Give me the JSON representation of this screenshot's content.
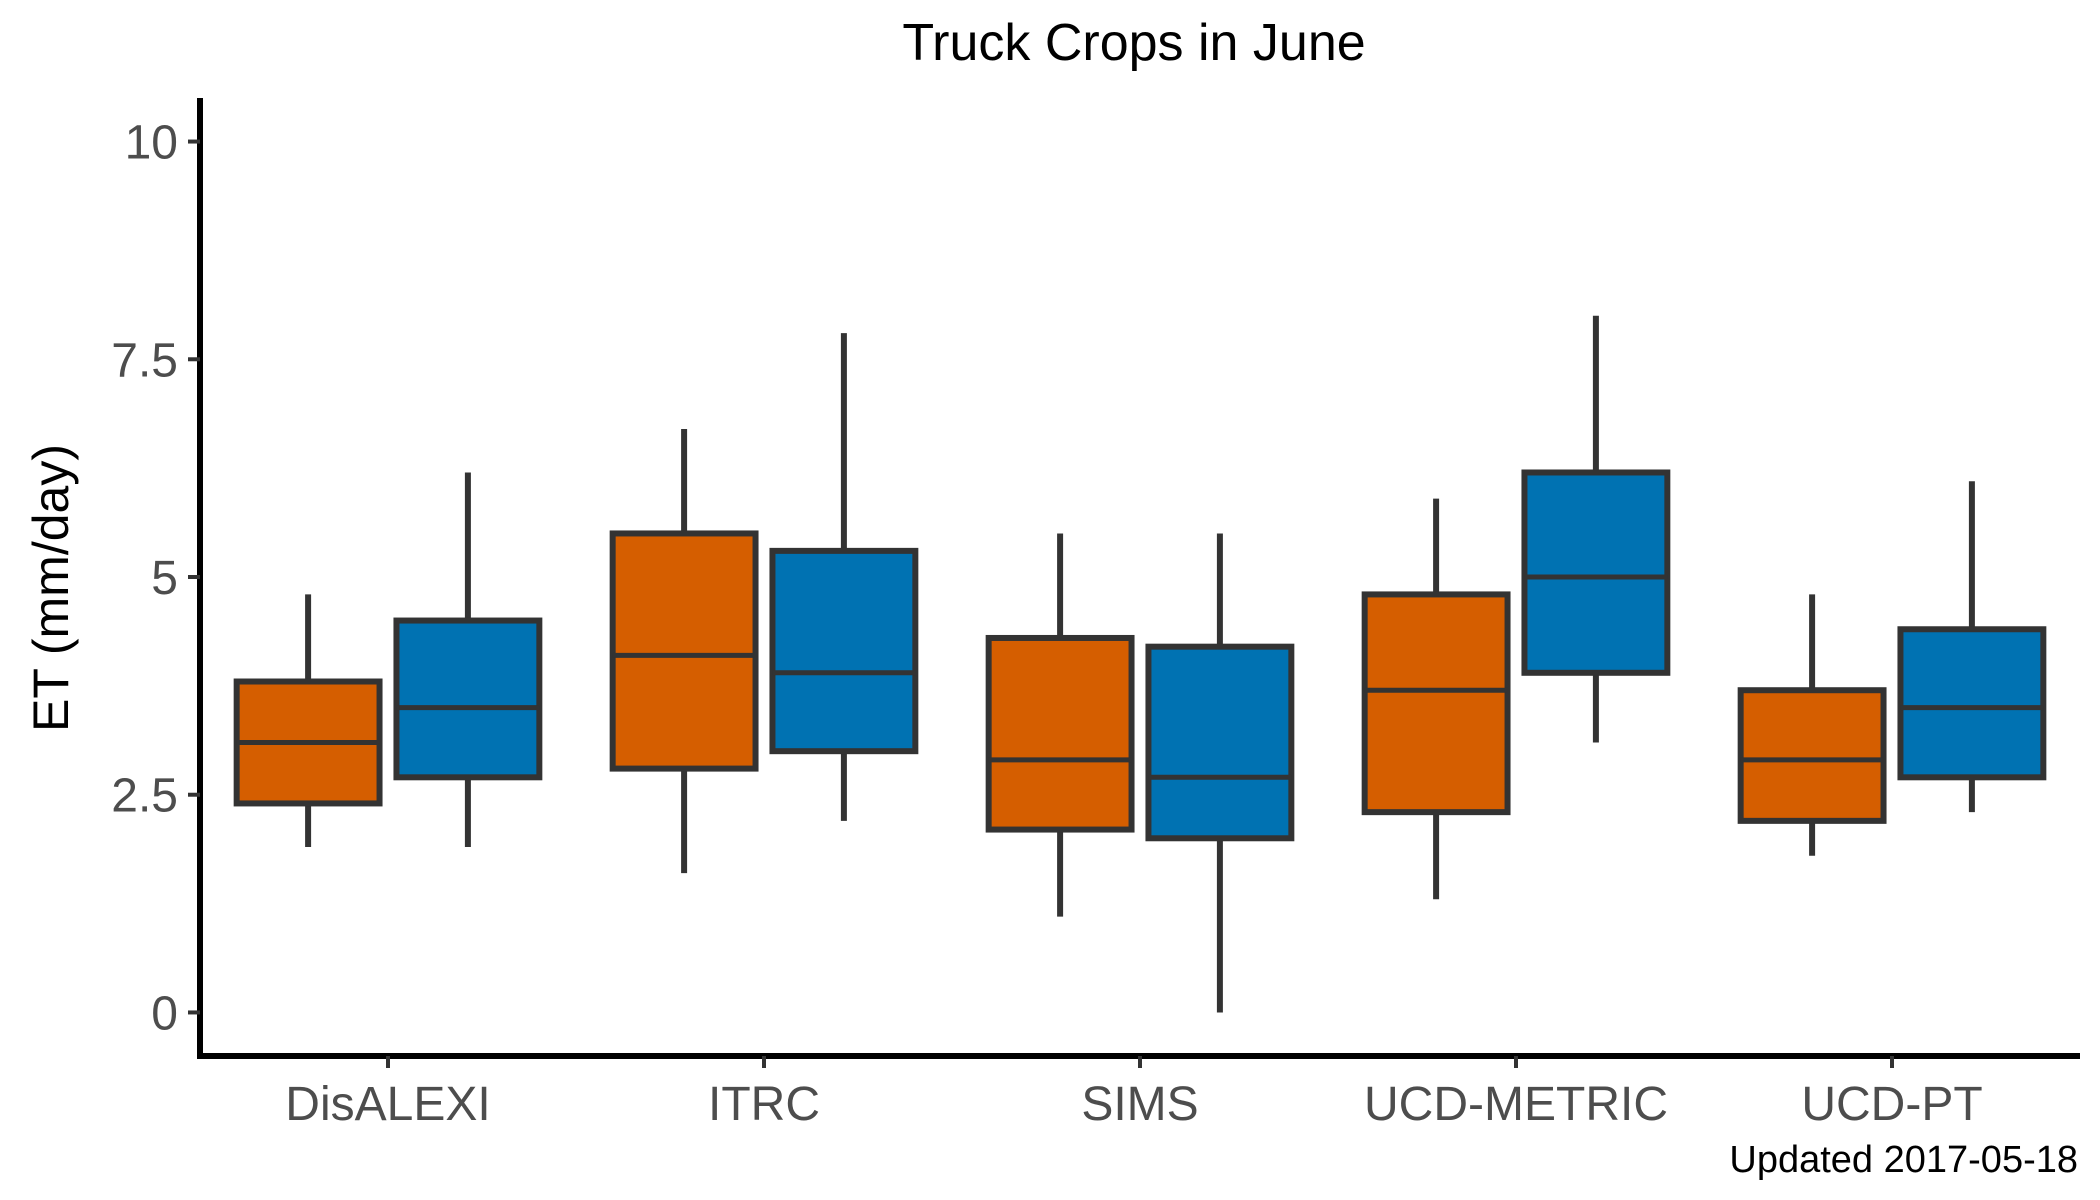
{
  "chart_data": {
    "type": "boxplot",
    "title": "Truck Crops in June",
    "ylabel": "ET (mm/day)",
    "xlabel": "",
    "ylim": [
      -0.5,
      10.5
    ],
    "yticks": [
      0,
      2.5,
      5,
      7.5,
      10
    ],
    "ytick_labels": [
      "0",
      "2.5",
      "5",
      "7.5",
      "10"
    ],
    "grid": false,
    "legend": "none",
    "categories": [
      "DisALEXI",
      "ITRC",
      "SIMS",
      "UCD-METRIC",
      "UCD-PT"
    ],
    "series": [
      {
        "color": "#d55e00",
        "boxes": [
          {
            "min": 1.9,
            "q1": 2.4,
            "median": 3.1,
            "q3": 3.8,
            "max": 4.8
          },
          {
            "min": 1.6,
            "q1": 2.8,
            "median": 4.1,
            "q3": 5.5,
            "max": 6.7
          },
          {
            "min": 1.1,
            "q1": 2.1,
            "median": 2.9,
            "q3": 4.3,
            "max": 5.5
          },
          {
            "min": 1.3,
            "q1": 2.3,
            "median": 3.7,
            "q3": 4.8,
            "max": 5.9
          },
          {
            "min": 1.8,
            "q1": 2.2,
            "median": 2.9,
            "q3": 3.7,
            "max": 4.8
          }
        ]
      },
      {
        "color": "#0072b2",
        "boxes": [
          {
            "min": 1.9,
            "q1": 2.7,
            "median": 3.5,
            "q3": 4.5,
            "max": 6.2
          },
          {
            "min": 2.2,
            "q1": 3.0,
            "median": 3.9,
            "q3": 5.3,
            "max": 7.8
          },
          {
            "min": 0.0,
            "q1": 2.0,
            "median": 2.7,
            "q3": 4.2,
            "max": 5.5
          },
          {
            "min": 3.1,
            "q1": 3.9,
            "median": 5.0,
            "q3": 6.2,
            "max": 8.0
          },
          {
            "min": 2.3,
            "q1": 2.7,
            "median": 3.5,
            "q3": 4.4,
            "max": 6.1
          }
        ]
      }
    ],
    "footnote": "Updated  2017-05-18",
    "line_color": "#333333"
  }
}
